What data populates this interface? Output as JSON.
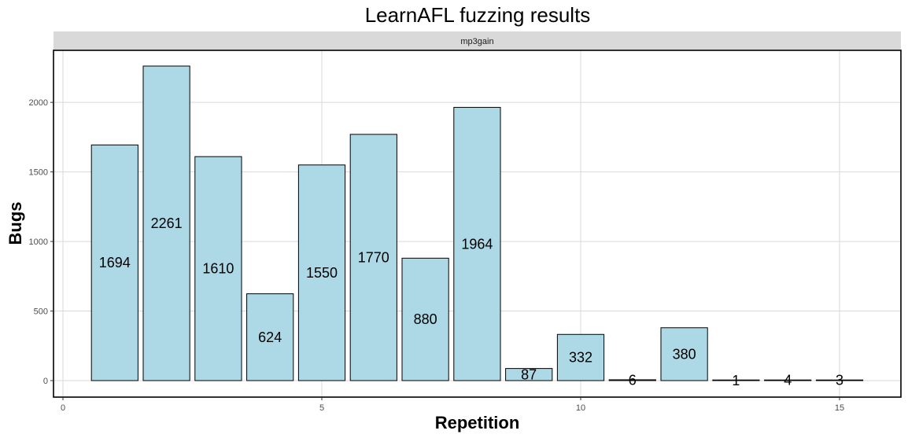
{
  "chart_data": {
    "type": "bar",
    "title": "LearnAFL fuzzing results",
    "facet_label": "mp3gain",
    "xlabel": "Repetition",
    "ylabel": "Bugs",
    "x": [
      1,
      2,
      3,
      4,
      5,
      6,
      7,
      8,
      9,
      10,
      11,
      12,
      13,
      14,
      15
    ],
    "values": [
      1694,
      2261,
      1610,
      624,
      1550,
      1770,
      880,
      1964,
      87,
      332,
      6,
      380,
      1,
      4,
      3
    ],
    "xlim": [
      0,
      16.1
    ],
    "ylim": [
      0,
      2261
    ],
    "x_ticks": [
      0,
      5,
      10,
      15
    ],
    "y_ticks": [
      0,
      500,
      1000,
      1500,
      2000
    ],
    "grid": true,
    "colors": {
      "bar_fill": "#add8e6",
      "bar_stroke": "#000000",
      "grid": "#d9d9d9",
      "strip": "#d9d9d9"
    }
  }
}
